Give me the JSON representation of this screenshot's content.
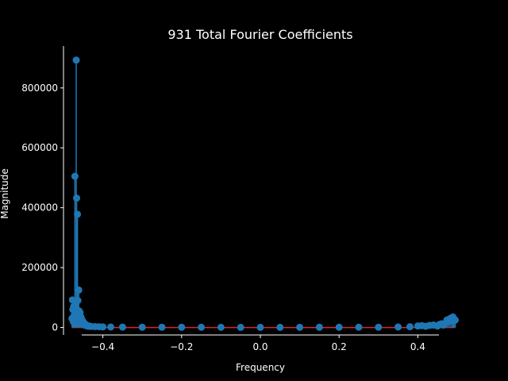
{
  "chart_data": {
    "type": "stem",
    "title": "931 Total Fourier Coefficients",
    "xlabel": "Frequency",
    "ylabel": "Magnitude",
    "xlim": [
      -0.5,
      0.5
    ],
    "ylim": [
      -25000,
      940000
    ],
    "xticks": [
      -0.4,
      -0.2,
      0.0,
      0.2,
      0.4
    ],
    "xtick_labels": [
      "−0.4",
      "−0.2",
      "0.0",
      "0.2",
      "0.4"
    ],
    "yticks": [
      0,
      200000,
      400000,
      600000,
      800000
    ],
    "ytick_labels": [
      "0",
      "200000",
      "400000",
      "600000",
      "800000"
    ],
    "grid": false,
    "colors": {
      "stem": "#1f77b4",
      "baseline": "#d62728",
      "background": "#000000",
      "text": "#ffffff"
    },
    "series": [
      {
        "x": [
          -0.4785,
          -0.4774,
          -0.4764,
          -0.4753,
          -0.4742,
          -0.4731,
          -0.4721,
          -0.471,
          -0.4699,
          -0.4688,
          -0.4677,
          -0.4667,
          -0.4656,
          -0.4645,
          -0.4634,
          -0.4624,
          -0.4613,
          -0.4602,
          -0.4591,
          -0.4581,
          -0.457,
          -0.4559,
          -0.4548,
          -0.4538,
          -0.4527,
          -0.4516,
          -0.4505,
          -0.4495,
          -0.4484,
          -0.4473,
          -0.4462,
          -0.4452,
          -0.4441,
          -0.443,
          -0.4419,
          -0.4409,
          -0.4398,
          -0.4387,
          -0.4376,
          -0.4366,
          -0.4355,
          -0.43,
          -0.42,
          -0.41,
          -0.4,
          -0.38,
          -0.35,
          -0.3,
          -0.25,
          -0.2,
          -0.15,
          -0.1,
          -0.05,
          0.0,
          0.05,
          0.1,
          0.15,
          0.2,
          0.25,
          0.3,
          0.35,
          0.38,
          0.4,
          0.41,
          0.42,
          0.43,
          0.44,
          0.45,
          0.455,
          0.46,
          0.465,
          0.47,
          0.474,
          0.478,
          0.482,
          0.486,
          0.489,
          0.492,
          0.495
        ],
        "y": [
          30000,
          92000,
          60000,
          20000,
          70000,
          40000,
          15000,
          505000,
          80000,
          30000,
          893000,
          432000,
          60000,
          378000,
          90000,
          40000,
          125000,
          55000,
          30000,
          50000,
          25000,
          35000,
          20000,
          28000,
          15000,
          22000,
          12000,
          18000,
          10000,
          14000,
          8000,
          11000,
          7000,
          9000,
          6000,
          7500,
          5000,
          6000,
          4500,
          5000,
          4000,
          3500,
          3000,
          2500,
          2000,
          1500,
          1200,
          1000,
          900,
          800,
          700,
          600,
          500,
          500,
          500,
          600,
          700,
          800,
          900,
          1000,
          1500,
          2500,
          5000,
          6000,
          4000,
          7000,
          8000,
          5000,
          10000,
          12000,
          8000,
          15000,
          25000,
          20000,
          30000,
          22000,
          35000,
          28000,
          25000
        ]
      }
    ]
  }
}
